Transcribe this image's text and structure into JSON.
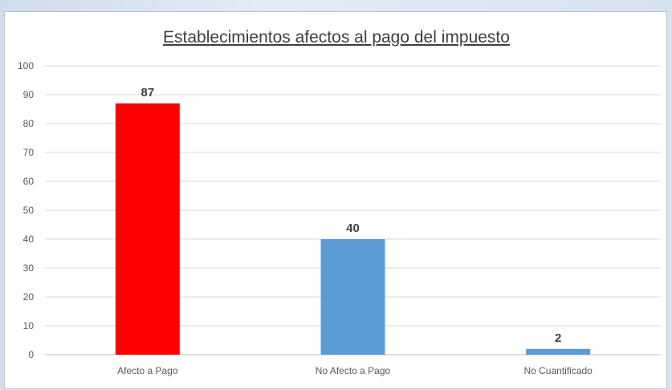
{
  "chart_data": {
    "type": "bar",
    "title": "Establecimientos afectos al pago del impuesto",
    "xlabel": "",
    "ylabel": "",
    "categories": [
      "Afecto a Pago",
      "No Afecto a Pago",
      "No Cuantificado"
    ],
    "values": [
      87,
      40,
      2
    ],
    "data_labels": [
      "87",
      "40",
      "2"
    ],
    "bar_colors": [
      "#ff0000",
      "#5b9bd5",
      "#5b9bd5"
    ],
    "ylim": [
      0,
      100
    ],
    "yticks": [
      "0",
      "10",
      "20",
      "30",
      "40",
      "50",
      "60",
      "70",
      "80",
      "90",
      "100"
    ],
    "grid": true,
    "legend": "none"
  }
}
